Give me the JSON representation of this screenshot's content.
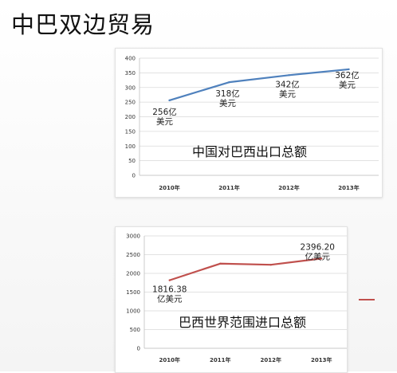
{
  "page": {
    "title": "中巴双边贸易"
  },
  "colors": {
    "series1": "#4f81bd",
    "series2": "#c0504d"
  },
  "chart_data": [
    {
      "type": "line",
      "x": [
        "2010年",
        "2011年",
        "2012年",
        "2013年"
      ],
      "series": [
        {
          "values": [
            256,
            318,
            342,
            362
          ]
        }
      ],
      "ylim": [
        0,
        400
      ],
      "yticks": [
        0,
        50,
        100,
        150,
        200,
        250,
        300,
        350,
        400
      ],
      "grid": true,
      "data_labels": [
        [
          "256亿",
          "美元"
        ],
        [
          "318亿",
          "美元"
        ],
        [
          "342亿",
          "美元"
        ],
        [
          "362亿",
          "美元"
        ]
      ],
      "annotation": "中国对巴西出口总额"
    },
    {
      "type": "line",
      "x": [
        "2010年",
        "2011年",
        "2012年",
        "2013年"
      ],
      "series": [
        {
          "values": [
            1816.38,
            2260,
            2230,
            2396.2
          ]
        }
      ],
      "ylim": [
        0,
        3000
      ],
      "yticks": [
        0,
        500,
        1000,
        1500,
        2000,
        2500,
        3000
      ],
      "grid": true,
      "data_labels": [
        [
          "1816.38",
          "亿美元"
        ],
        null,
        null,
        [
          "2396.20",
          "亿美元"
        ]
      ],
      "annotation": "巴西世界范围进口总额",
      "legend_entry": ""
    }
  ]
}
